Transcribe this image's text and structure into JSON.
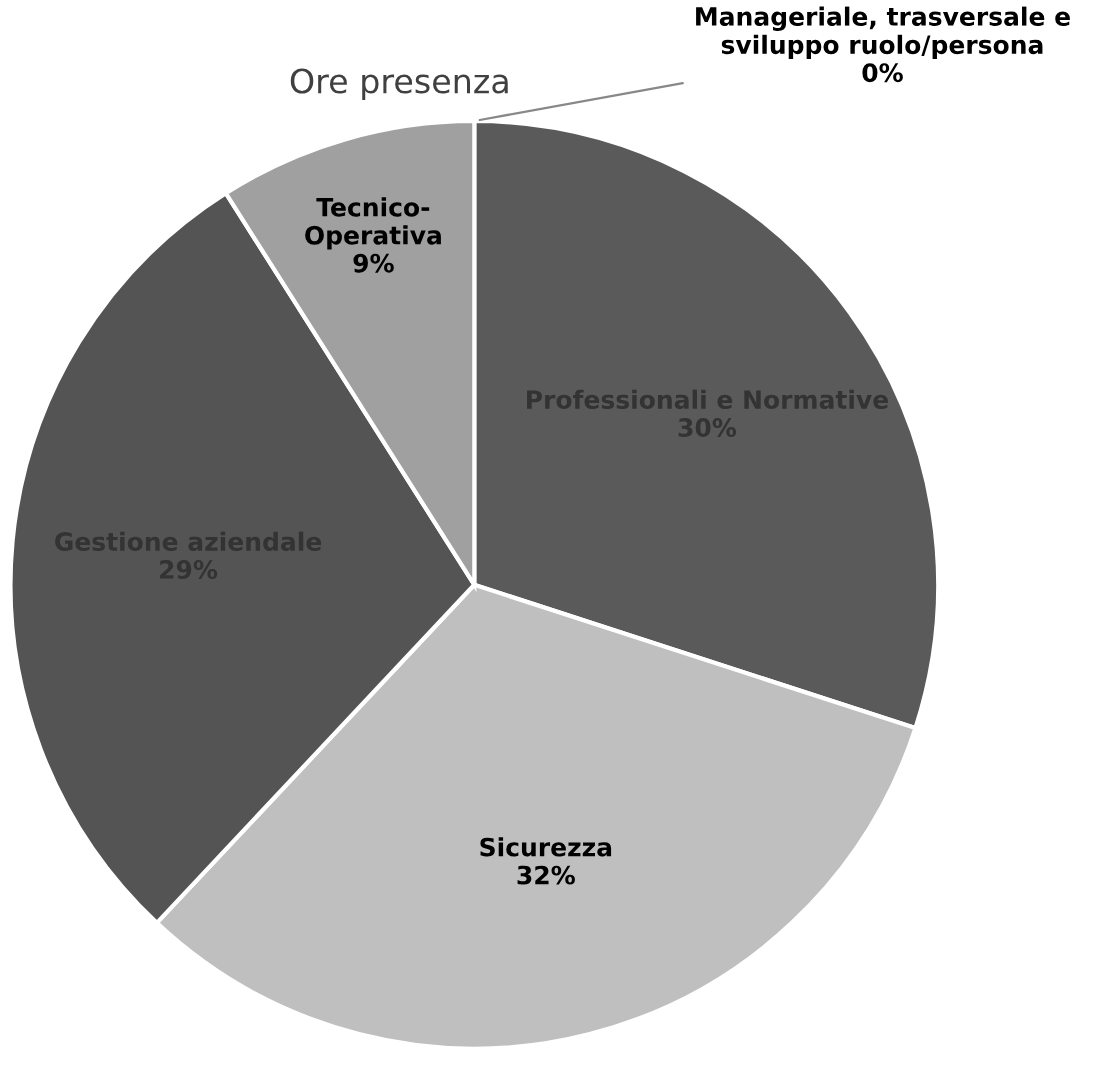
{
  "chart_data": {
    "type": "pie",
    "title": "Ore presenza",
    "categories": [
      "Manageriale, trasversale e sviluppo ruolo/persona",
      "Professionali e Normative",
      "Sicurezza",
      "Gestione aziendale",
      "Tecnico-Operativa"
    ],
    "values": [
      0,
      30,
      32,
      29,
      9
    ],
    "value_labels": [
      "0%",
      "30%",
      "32%",
      "29%",
      "9%"
    ],
    "colors": [
      "#d9d9d9",
      "#5a5a5a",
      "#bfbfbf",
      "#545454",
      "#a0a0a0"
    ]
  }
}
